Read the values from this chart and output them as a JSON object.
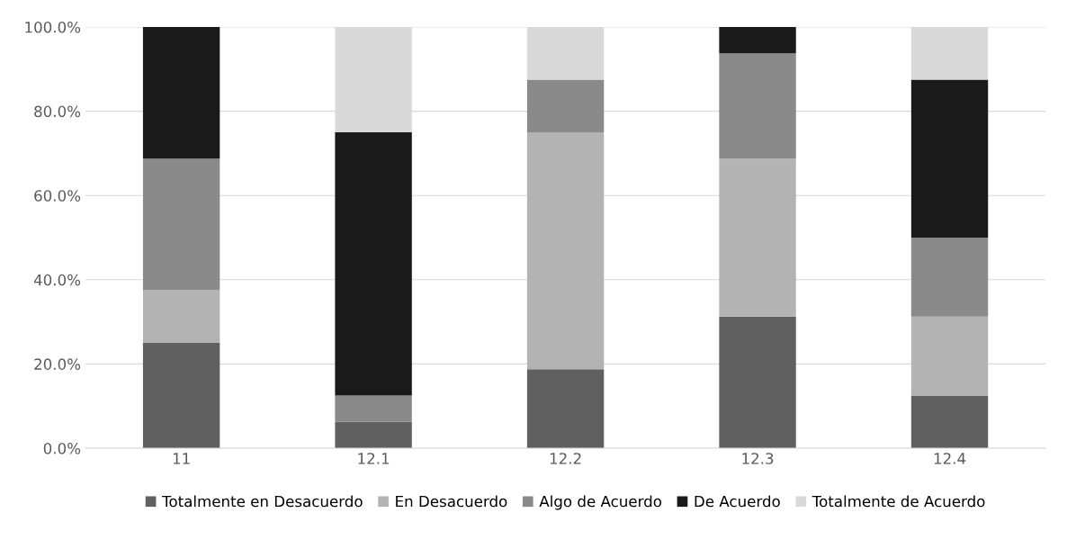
{
  "chart_data": {
    "type": "bar",
    "stacked": true,
    "categories": [
      "11",
      "12.1",
      "12.2",
      "12.3",
      "12.4"
    ],
    "series": [
      {
        "name": "Totalmente en Desacuerdo",
        "color": "#606060",
        "values": [
          25,
          6.25,
          18.75,
          31.25,
          12.5
        ]
      },
      {
        "name": "En Desacuerdo",
        "color": "#b3b3b3",
        "values": [
          12.5,
          0,
          56.25,
          37.5,
          18.75
        ]
      },
      {
        "name": "Algo de Acuerdo",
        "color": "#8a8a8a",
        "values": [
          31.25,
          6.25,
          12.5,
          25,
          18.75
        ]
      },
      {
        "name": "De Acuerdo",
        "color": "#1a1a1a",
        "values": [
          31.25,
          62.5,
          0,
          6.25,
          37.5
        ]
      },
      {
        "name": "Totalmente de Acuerdo",
        "color": "#d9d9d9",
        "values": [
          0,
          25,
          12.5,
          0,
          12.5
        ]
      }
    ],
    "ylim": [
      0,
      100
    ],
    "yticks": [
      {
        "value": 0,
        "label": "0.0%"
      },
      {
        "value": 20,
        "label": "20.0%"
      },
      {
        "value": 40,
        "label": "40.0%"
      },
      {
        "value": 60,
        "label": "60.0%"
      },
      {
        "value": 80,
        "label": "80.0%"
      },
      {
        "value": 100,
        "label": "100.0%"
      }
    ],
    "grid": "y",
    "legend": "bottom"
  }
}
